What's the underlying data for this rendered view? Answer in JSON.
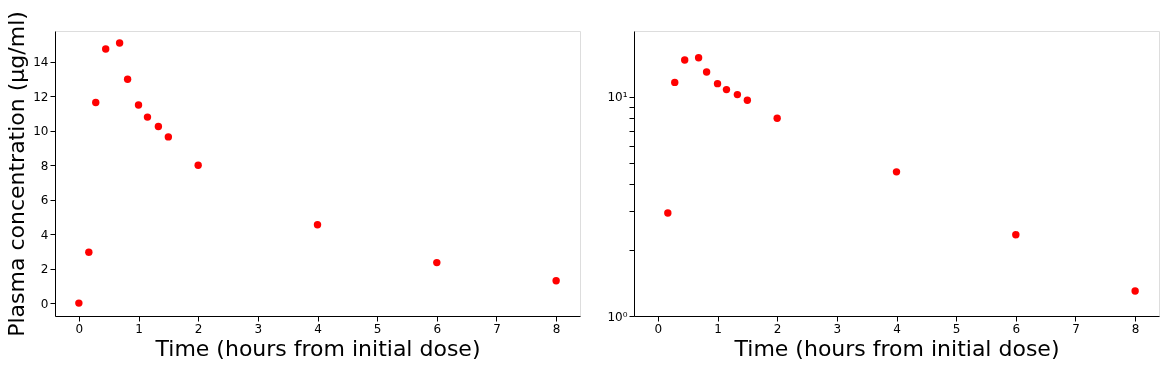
{
  "chart_data": [
    {
      "type": "scatter",
      "xlabel": "Time (hours from initial dose)",
      "ylabel": "Plasma concentration (μg/ml)",
      "marker": "circle",
      "grid": false,
      "x": [
        0,
        0.167,
        0.283,
        0.45,
        0.683,
        0.817,
        1,
        1.15,
        1.333,
        1.5,
        2,
        4,
        6,
        8
      ],
      "series": [
        {
          "color": "#ff0000",
          "values": [
            0,
            2.95,
            11.65,
            14.75,
            15.1,
            13.0,
            11.5,
            10.8,
            10.25,
            9.65,
            8.0,
            4.55,
            2.35,
            1.3
          ]
        }
      ],
      "xlim": [
        -0.4,
        8.4
      ],
      "xticks": [
        0,
        1,
        2,
        3,
        4,
        5,
        6,
        7,
        8
      ],
      "ylim": [
        -0.75,
        15.8
      ],
      "yticks": [
        0,
        2,
        4,
        6,
        8,
        10,
        12,
        14
      ]
    },
    {
      "type": "scatter",
      "xlabel": "Time (hours from initial dose)",
      "marker": "circle",
      "grid": false,
      "log": "y",
      "x": [
        0.167,
        0.283,
        0.45,
        0.683,
        0.817,
        1,
        1.15,
        1.333,
        1.5,
        2,
        4,
        6,
        8
      ],
      "series": [
        {
          "color": "#ff0000",
          "values": [
            2.95,
            11.65,
            14.75,
            15.1,
            13.0,
            11.5,
            10.8,
            10.25,
            9.65,
            8.0,
            4.55,
            2.35,
            1.3
          ]
        }
      ],
      "xlim": [
        -0.4,
        8.4
      ],
      "xticks": [
        0,
        1,
        2,
        3,
        4,
        5,
        6,
        7,
        8
      ],
      "ylim": [
        1,
        20
      ],
      "yticks": [
        {
          "value": 1,
          "label": "10⁰"
        },
        {
          "value": 2,
          "label": null
        },
        {
          "value": 3,
          "label": null
        },
        {
          "value": 4,
          "label": null
        },
        {
          "value": 5,
          "label": null
        },
        {
          "value": 6,
          "label": null
        },
        {
          "value": 7,
          "label": null
        },
        {
          "value": 8,
          "label": null
        },
        {
          "value": 9,
          "label": null
        },
        {
          "value": 10,
          "label": "10¹"
        }
      ]
    }
  ]
}
